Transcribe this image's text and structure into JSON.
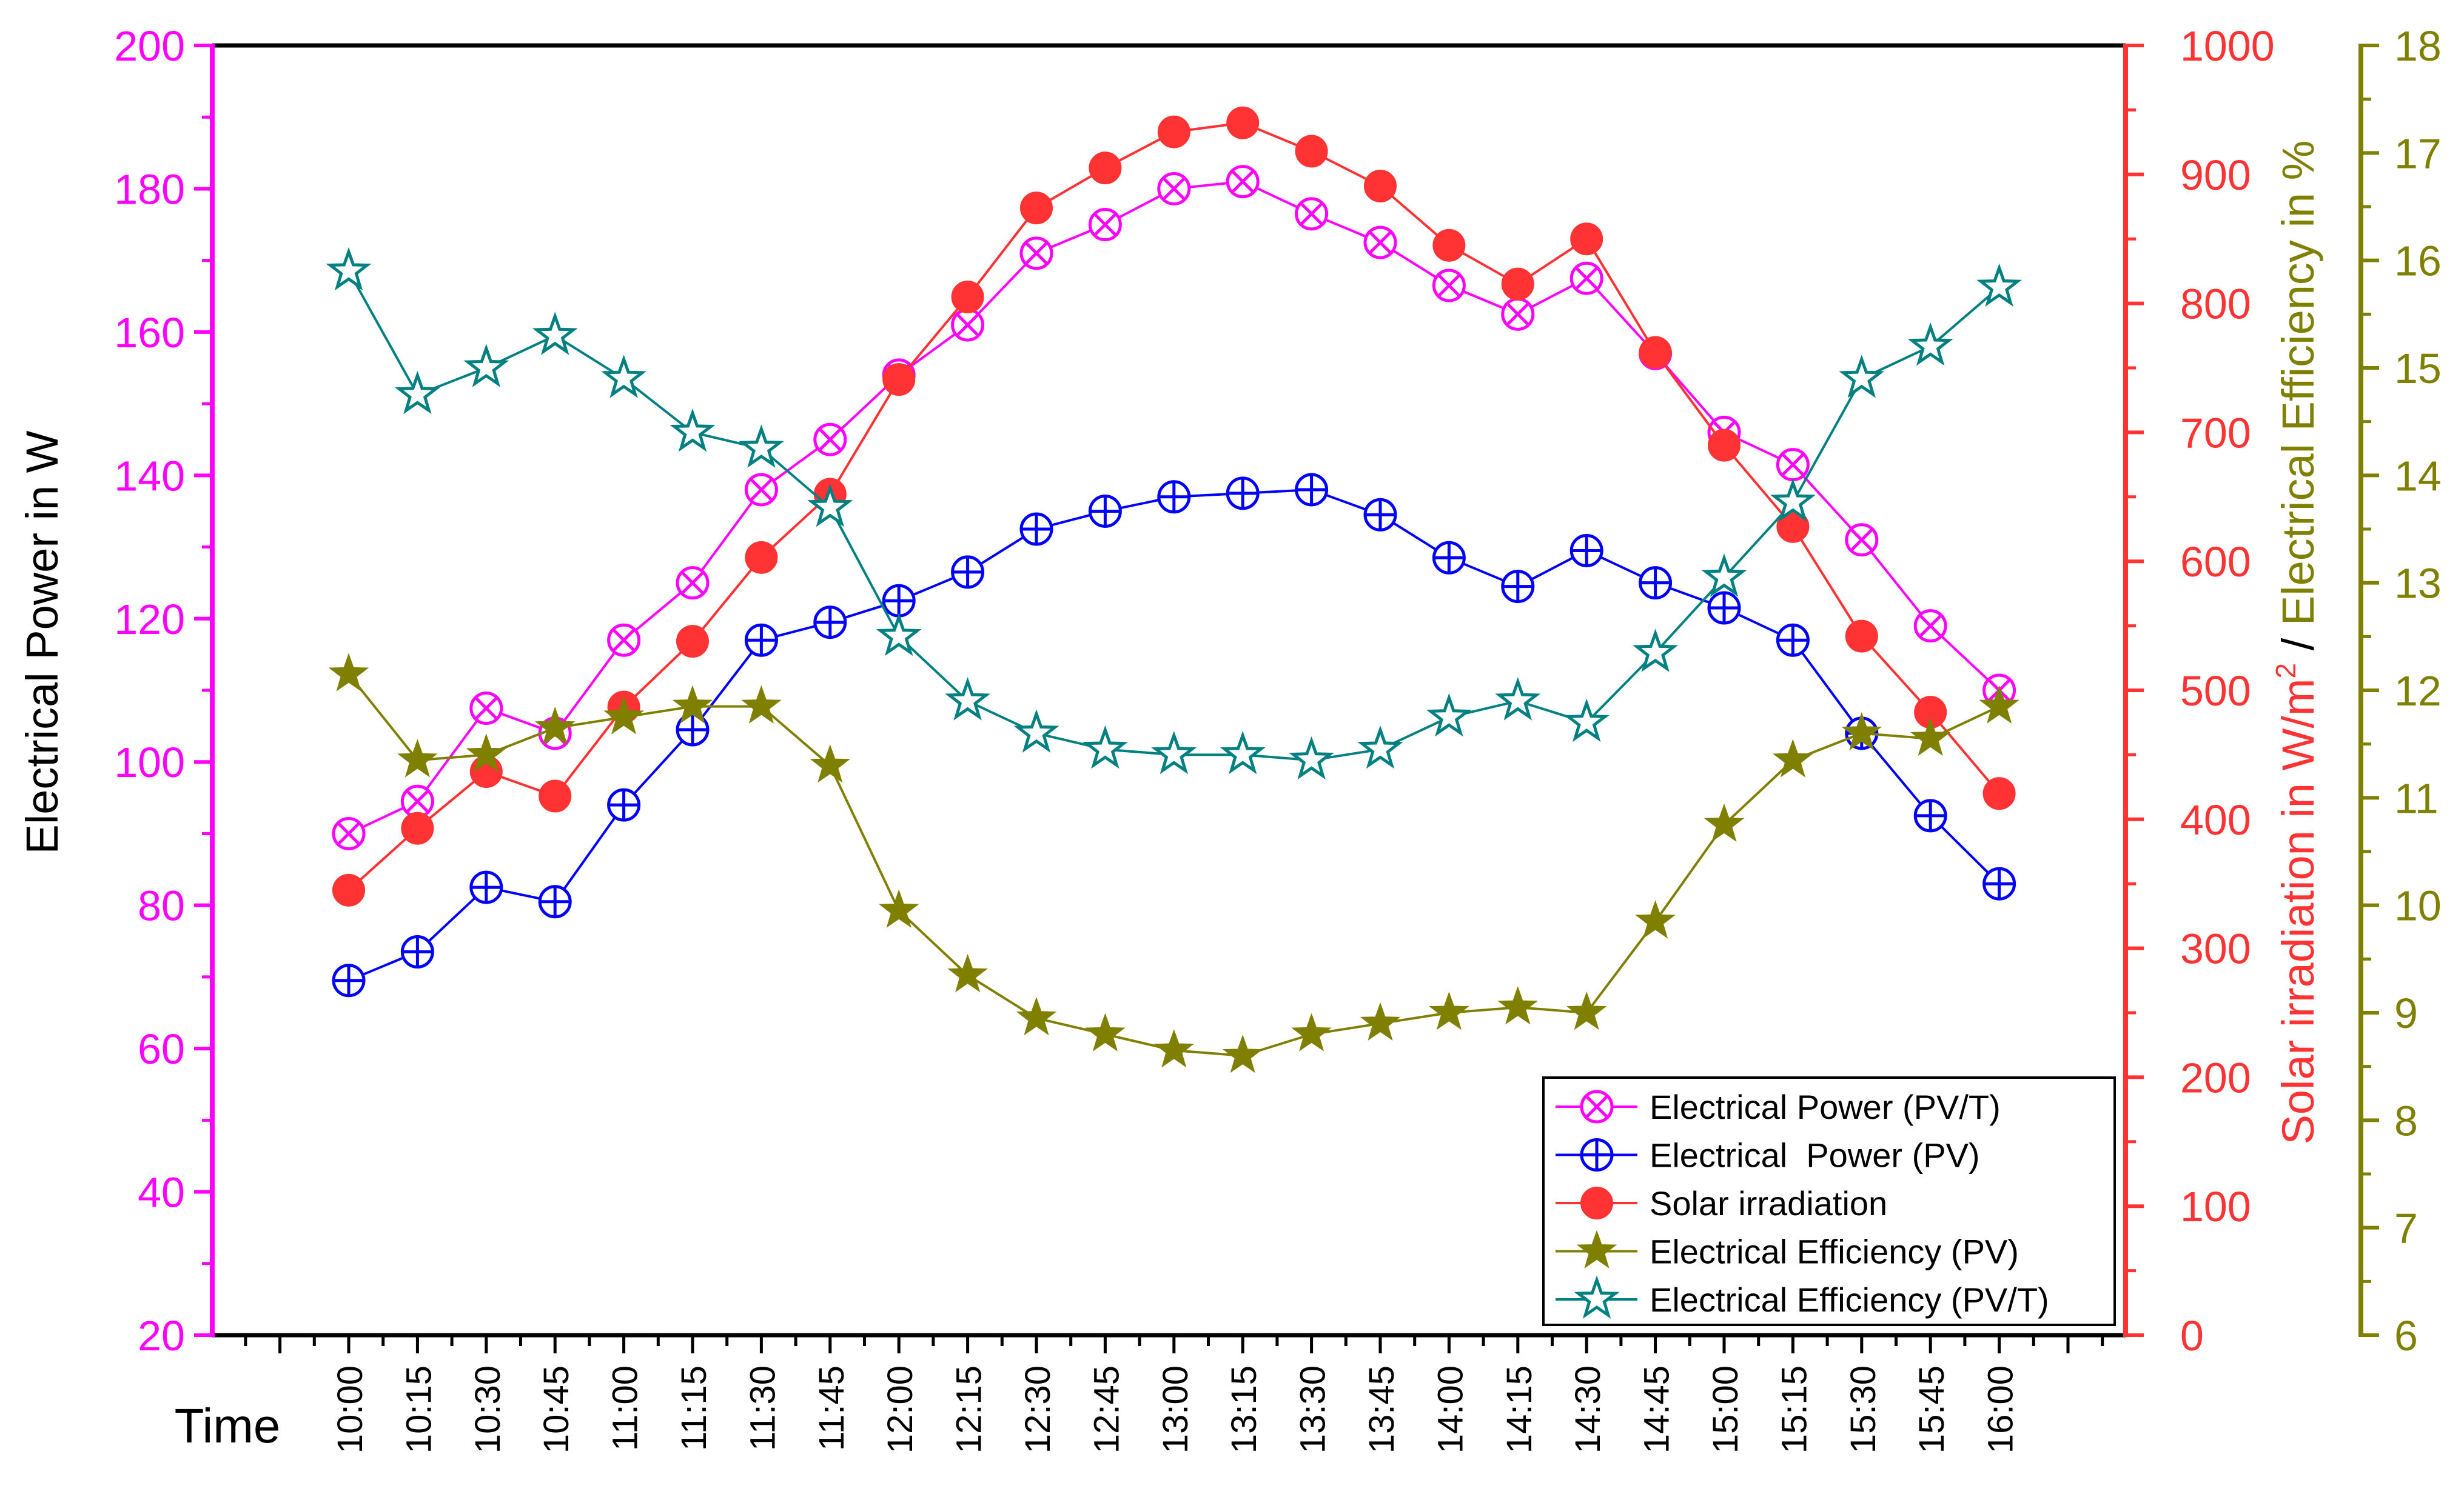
{
  "chart_data": {
    "type": "line",
    "xlabel": "Time",
    "categories": [
      "10:00",
      "10:15",
      "10:30",
      "10:45",
      "11:00",
      "11:15",
      "11:30",
      "11:45",
      "12:00",
      "12:15",
      "12:30",
      "12:45",
      "13:00",
      "13:15",
      "13:30",
      "13:45",
      "14:00",
      "14:15",
      "14:30",
      "14:45",
      "15:00",
      "15:15",
      "15:30",
      "15:45",
      "16:00"
    ],
    "axes": {
      "left": {
        "label": "Electrical Power in W",
        "ylim": [
          20,
          200
        ],
        "ticks": [
          20,
          40,
          60,
          80,
          100,
          120,
          140,
          160,
          180,
          200
        ],
        "color": "#FF00FF"
      },
      "right1": {
        "label_main": "Solar irradiation in W/m",
        "label_sup": "2",
        "ylim": [
          0,
          1000
        ],
        "ticks": [
          0,
          100,
          200,
          300,
          400,
          500,
          600,
          700,
          800,
          900,
          1000
        ],
        "color": "#FF3333"
      },
      "right2": {
        "label": "Electrical Efficiency in %",
        "ylim": [
          6,
          18
        ],
        "ticks": [
          6,
          7,
          8,
          9,
          10,
          11,
          12,
          13,
          14,
          15,
          16,
          17,
          18
        ],
        "color": "#808000"
      },
      "separator": " / "
    },
    "series": [
      {
        "name": "Electrical Power (PV/T)",
        "axis": "left",
        "color": "#FF00FF",
        "marker": "circle-x",
        "values": [
          90,
          94.5,
          107.5,
          104,
          117,
          125,
          138,
          145,
          154,
          161,
          171,
          175,
          180,
          181,
          176.5,
          172.5,
          166.5,
          162.5,
          167.5,
          157,
          146,
          141.5,
          131,
          119,
          110
        ]
      },
      {
        "name": "Electrical  Power (PV)",
        "axis": "left",
        "color": "#0000FF",
        "marker": "circle-plus",
        "values": [
          69.5,
          73.5,
          82.5,
          80.5,
          94,
          104.5,
          117,
          119.5,
          122.5,
          126.5,
          132.5,
          135,
          137,
          137.5,
          138,
          134.5,
          128.5,
          124.5,
          129.5,
          125,
          121.5,
          117,
          104,
          92.5,
          83
        ]
      },
      {
        "name": "Solar irradiation",
        "axis": "right1",
        "color": "#FF3333",
        "marker": "filled-circle",
        "values": [
          345,
          393,
          437,
          418,
          487,
          538,
          603,
          652,
          741,
          805,
          874,
          905,
          933,
          940,
          918,
          891,
          845,
          815,
          850,
          762,
          690,
          627,
          542,
          483,
          420
        ]
      },
      {
        "name": "Electrical Efficiency (PV)",
        "axis": "right2",
        "color": "#808000",
        "marker": "filled-star",
        "values": [
          12.15,
          11.35,
          11.4,
          11.65,
          11.75,
          11.85,
          11.85,
          11.3,
          9.95,
          9.35,
          8.95,
          8.8,
          8.65,
          8.6,
          8.8,
          8.9,
          9.0,
          9.05,
          9.0,
          9.85,
          10.75,
          11.35,
          11.6,
          11.55,
          11.85
        ]
      },
      {
        "name": "Electrical Efficiency (PV/T)",
        "axis": "right2",
        "color": "#008080",
        "marker": "hollow-star",
        "values": [
          15.9,
          14.75,
          15.0,
          15.3,
          14.9,
          14.4,
          14.25,
          13.7,
          12.5,
          11.9,
          11.6,
          11.45,
          11.4,
          11.4,
          11.35,
          11.45,
          11.75,
          11.9,
          11.7,
          12.35,
          13.05,
          13.75,
          14.9,
          15.2,
          15.75
        ]
      }
    ],
    "legend": {
      "position": "bottom-right",
      "entries": [
        "Electrical Power (PV/T)",
        "Electrical  Power (PV)",
        "Solar irradiation",
        "Electrical Efficiency (PV)",
        "Electrical Efficiency (PV/T)"
      ]
    }
  }
}
